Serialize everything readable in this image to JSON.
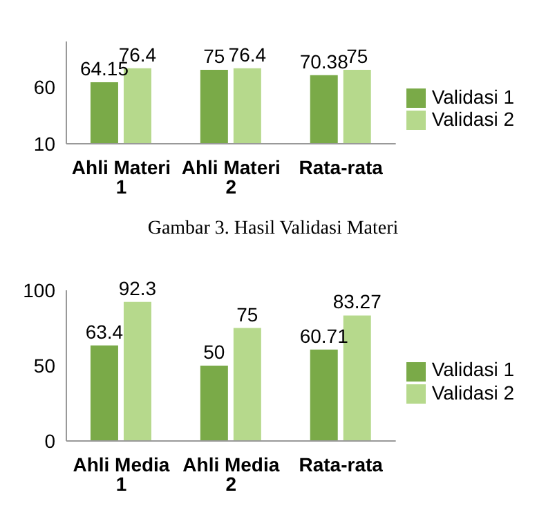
{
  "chart_data": [
    {
      "type": "bar",
      "categories": [
        "Ahli Materi 1",
        "Ahli Materi 2",
        "Rata-rata"
      ],
      "series": [
        {
          "name": "Validasi 1",
          "color": "#7aaa48",
          "values": [
            64.15,
            75,
            70.38
          ]
        },
        {
          "name": "Validasi 2",
          "color": "#b6d98c",
          "values": [
            76.4,
            76.4,
            75
          ]
        }
      ],
      "ylim": [
        10,
        100
      ],
      "yticks": [
        10,
        60
      ],
      "data_labels": true,
      "legend": "right",
      "annotations": [
        "Gambar 3. Hasil Validasi Materi"
      ]
    },
    {
      "type": "bar",
      "categories": [
        "Ahli Media 1",
        "Ahli Media 2",
        "Rata-rata"
      ],
      "series": [
        {
          "name": "Validasi 1",
          "color": "#7aaa48",
          "values": [
            63.4,
            50,
            60.71
          ]
        },
        {
          "name": "Validasi 2",
          "color": "#b6d98c",
          "values": [
            92.3,
            75,
            83.27
          ]
        }
      ],
      "ylim": [
        0,
        100
      ],
      "yticks": [
        0,
        50,
        100
      ],
      "data_labels": true,
      "legend": "right"
    }
  ]
}
